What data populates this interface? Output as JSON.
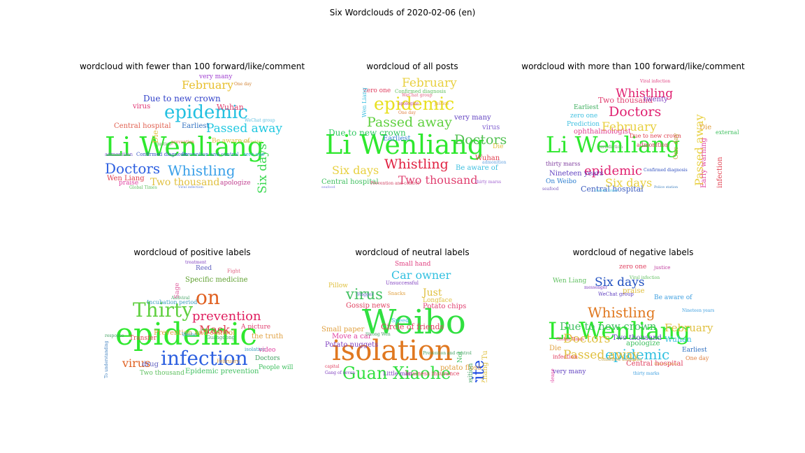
{
  "figure_title": "Six Wordclouds of 2020-02-06 (en)",
  "panels": [
    {
      "title": "wordcloud with fewer than 100 forward/like/comment",
      "words": [
        {
          "t": "Li Wenliang",
          "s": 38,
          "c": "#2ee82e"
        },
        {
          "t": "epidemic",
          "s": 26,
          "c": "#22c0e0"
        },
        {
          "t": "Doctors",
          "s": 20,
          "c": "#2d5fe0"
        },
        {
          "t": "Whistling",
          "s": 20,
          "c": "#3aa0e8"
        },
        {
          "t": "Passed away",
          "s": 17,
          "c": "#22c8e0"
        },
        {
          "t": "February",
          "s": 16,
          "c": "#e8c030"
        },
        {
          "t": "Six days",
          "s": 17,
          "c": "#3ad850",
          "r": 1
        },
        {
          "t": "Two thousand",
          "s": 14,
          "c": "#e0c040"
        },
        {
          "t": "Due to new crown",
          "s": 12,
          "c": "#3040c8"
        },
        {
          "t": "Wuhan",
          "s": 11,
          "c": "#e04070"
        },
        {
          "t": "Central hospital",
          "s": 10,
          "c": "#e06050"
        },
        {
          "t": "Earliest",
          "s": 10,
          "c": "#3070c0"
        },
        {
          "t": "Wen Liang",
          "s": 10,
          "c": "#e04050"
        },
        {
          "t": "very many",
          "s": 9,
          "c": "#a040d0"
        },
        {
          "t": "virus",
          "s": 10,
          "c": "#e03070"
        },
        {
          "t": "Be aware of",
          "s": 9,
          "c": "#e0c040"
        },
        {
          "t": "apologize",
          "s": 9,
          "c": "#c04090"
        },
        {
          "t": "praise",
          "s": 9,
          "c": "#e040a0"
        },
        {
          "t": "Confirmed diagnosis",
          "s": 7,
          "c": "#3050c0"
        },
        {
          "t": "Prevention and control",
          "s": 7,
          "c": "#3070c8"
        },
        {
          "t": "admonition",
          "s": 7,
          "c": "#8060d0"
        },
        {
          "t": "One day",
          "s": 6,
          "c": "#d08030"
        },
        {
          "t": "Die",
          "s": 11,
          "c": "#e0c040",
          "r": 1
        },
        {
          "t": "zero one",
          "s": 7,
          "c": "#40a0e0"
        },
        {
          "t": "justice",
          "s": 6,
          "c": "#40a040"
        },
        {
          "t": "prevention",
          "s": 6,
          "c": "#e07040"
        },
        {
          "t": "Global Times",
          "s": 6,
          "c": "#60c060"
        },
        {
          "t": "WeChat group",
          "s": 6,
          "c": "#60c0e0"
        },
        {
          "t": "Viral infection",
          "s": 5,
          "c": "#6080e0"
        },
        {
          "t": "Gallbladder",
          "s": 5,
          "c": "#c0c040"
        }
      ]
    },
    {
      "title": "wordcloud of all posts",
      "words": [
        {
          "t": "Li Wenliang",
          "s": 38,
          "c": "#2ee82e"
        },
        {
          "t": "epidemic",
          "s": 25,
          "c": "#e8e020"
        },
        {
          "t": "Passed away",
          "s": 19,
          "c": "#60d040"
        },
        {
          "t": "February",
          "s": 17,
          "c": "#e8d040"
        },
        {
          "t": "Doctors",
          "s": 19,
          "c": "#50c050"
        },
        {
          "t": "Whistling",
          "s": 19,
          "c": "#e02040"
        },
        {
          "t": "Six days",
          "s": 16,
          "c": "#e8d040"
        },
        {
          "t": "Two thousand",
          "s": 16,
          "c": "#e04070"
        },
        {
          "t": "Due to new crown",
          "s": 12,
          "c": "#30c860"
        },
        {
          "t": "very many",
          "s": 10,
          "c": "#6040c0"
        },
        {
          "t": "Central hospital",
          "s": 10,
          "c": "#40c060"
        },
        {
          "t": "Earliest",
          "s": 10,
          "c": "#3080d0"
        },
        {
          "t": "Be aware of",
          "s": 10,
          "c": "#40c0e0"
        },
        {
          "t": "Wuhan",
          "s": 10,
          "c": "#e04050"
        },
        {
          "t": "virus",
          "s": 10,
          "c": "#8060d0"
        },
        {
          "t": "zero one",
          "s": 9,
          "c": "#e04060"
        },
        {
          "t": "Confirmed diagnosis",
          "s": 7,
          "c": "#60c060"
        },
        {
          "t": "Die",
          "s": 9,
          "c": "#e0c040"
        },
        {
          "t": "Prevention and control",
          "s": 6,
          "c": "#d04060"
        },
        {
          "t": "apologize",
          "s": 6,
          "c": "#c04090"
        },
        {
          "t": "thirty marss",
          "s": 6,
          "c": "#a060d0"
        },
        {
          "t": "justice",
          "s": 6,
          "c": "#e0a040"
        },
        {
          "t": "seafood",
          "s": 5,
          "c": "#8080e0"
        },
        {
          "t": "WeChat group",
          "s": 6,
          "c": "#e06080"
        },
        {
          "t": "admonition",
          "s": 6,
          "c": "#60a0e0"
        },
        {
          "t": "One day",
          "s": 6,
          "c": "#e08040"
        },
        {
          "t": "Wen Liang",
          "s": 8,
          "c": "#40c0e0",
          "r": 1
        }
      ]
    },
    {
      "title": "wordcloud with more than 100 forward/like/comment",
      "words": [
        {
          "t": "Li Wenliang",
          "s": 32,
          "c": "#2ee82e"
        },
        {
          "t": "epidemic",
          "s": 18,
          "c": "#e02070"
        },
        {
          "t": "Doctors",
          "s": 19,
          "c": "#e02070"
        },
        {
          "t": "Whistling",
          "s": 17,
          "c": "#e02070"
        },
        {
          "t": "February",
          "s": 17,
          "c": "#e8d040"
        },
        {
          "t": "Six days",
          "s": 16,
          "c": "#e8d040"
        },
        {
          "t": "Passed away",
          "s": 16,
          "c": "#e8d040",
          "r": 1
        },
        {
          "t": "Two thousand",
          "s": 11,
          "c": "#e04070"
        },
        {
          "t": "Central hospital",
          "s": 11,
          "c": "#4060c0"
        },
        {
          "t": "Nineteen years",
          "s": 10,
          "c": "#6040c0"
        },
        {
          "t": "ophthalmologist",
          "s": 10,
          "c": "#e04090"
        },
        {
          "t": "Due to new crown",
          "s": 8,
          "c": "#e04050"
        },
        {
          "t": "Earliest",
          "s": 9,
          "c": "#40b060"
        },
        {
          "t": "zero one",
          "s": 9,
          "c": "#40c0e0"
        },
        {
          "t": "twenty",
          "s": 10,
          "c": "#8040c0"
        },
        {
          "t": "Prediction",
          "s": 9,
          "c": "#40c0e0"
        },
        {
          "t": "thirty marss",
          "s": 8,
          "c": "#8040a0"
        },
        {
          "t": "On Weibo",
          "s": 9,
          "c": "#3080d0"
        },
        {
          "t": "Die",
          "s": 10,
          "c": "#e0a040"
        },
        {
          "t": "admonition",
          "s": 8,
          "c": "#d04060"
        },
        {
          "t": "Early warning",
          "s": 10,
          "c": "#e040a0",
          "r": 1
        },
        {
          "t": "infection",
          "s": 10,
          "c": "#e04050",
          "r": 1
        },
        {
          "t": "One day",
          "s": 9,
          "c": "#c0a040",
          "r": 1
        },
        {
          "t": "Confirmed diagnosis",
          "s": 6,
          "c": "#3050c0"
        },
        {
          "t": "Jurisdiction",
          "s": 6,
          "c": "#60a060"
        },
        {
          "t": "Viral infection",
          "s": 6,
          "c": "#e04080"
        },
        {
          "t": "seafood",
          "s": 6,
          "c": "#8060c0"
        },
        {
          "t": "Global Times",
          "s": 5,
          "c": "#40c0e0"
        },
        {
          "t": "Police station",
          "s": 5,
          "c": "#4080c0"
        },
        {
          "t": "external",
          "s": 8,
          "c": "#40c060"
        }
      ]
    },
    {
      "title": "wordcloud of positive labels",
      "words": [
        {
          "t": "epidemic",
          "s": 44,
          "c": "#2ee82e"
        },
        {
          "t": "infection",
          "s": 28,
          "c": "#2d60e0"
        },
        {
          "t": "Thirty",
          "s": 28,
          "c": "#60d040"
        },
        {
          "t": "on",
          "s": 28,
          "c": "#e06020"
        },
        {
          "t": "prevention",
          "s": 18,
          "c": "#e02060"
        },
        {
          "t": "Mask",
          "s": 16,
          "c": "#e04050"
        },
        {
          "t": "virus",
          "s": 16,
          "c": "#e06020"
        },
        {
          "t": "Specific medicine",
          "s": 10,
          "c": "#60a030"
        },
        {
          "t": "Prevention and control",
          "s": 10,
          "c": "#e0a040"
        },
        {
          "t": "Epidemic prevention",
          "s": 10,
          "c": "#40c060"
        },
        {
          "t": "Incubation period",
          "s": 8,
          "c": "#40a0c0"
        },
        {
          "t": "Two thousand",
          "s": 9,
          "c": "#60c060"
        },
        {
          "t": "the truth",
          "s": 10,
          "c": "#e0a040"
        },
        {
          "t": "Doctors",
          "s": 9,
          "c": "#40a060"
        },
        {
          "t": "People will",
          "s": 9,
          "c": "#40c060"
        },
        {
          "t": "Transfer",
          "s": 9,
          "c": "#e04050"
        },
        {
          "t": "Reed",
          "s": 9,
          "c": "#6060c0"
        },
        {
          "t": "drug",
          "s": 10,
          "c": "#6060c0"
        },
        {
          "t": "Guangdong",
          "s": 7,
          "c": "#40a060"
        },
        {
          "t": "Fight",
          "s": 7,
          "c": "#e06080"
        },
        {
          "t": "isolation",
          "s": 7,
          "c": "#40a0c0"
        },
        {
          "t": "treatment",
          "s": 6,
          "c": "#8040c0"
        },
        {
          "t": "February",
          "s": 7,
          "c": "#e0a040"
        },
        {
          "t": "Weibo",
          "s": 7,
          "c": "#40a0e0"
        },
        {
          "t": "Antiviral",
          "s": 6,
          "c": "#40a060"
        },
        {
          "t": "A picture",
          "s": 9,
          "c": "#e04070"
        },
        {
          "t": "video",
          "s": 9,
          "c": "#e040a0"
        },
        {
          "t": "Sage",
          "s": 9,
          "c": "#e060a0",
          "r": 1
        },
        {
          "t": "response",
          "s": 6,
          "c": "#40a060"
        },
        {
          "t": "To understanding",
          "s": 6,
          "c": "#4080c0",
          "r": 1
        }
      ]
    },
    {
      "title": "wordcloud of neutral labels",
      "words": [
        {
          "t": "Weibo",
          "s": 48,
          "c": "#30e040"
        },
        {
          "t": "isolation",
          "s": 40,
          "c": "#e07820"
        },
        {
          "t": "Guan Xiaohe",
          "s": 24,
          "c": "#30e040"
        },
        {
          "t": "virus",
          "s": 21,
          "c": "#40c060"
        },
        {
          "t": "Car owner",
          "s": 16,
          "c": "#30c0e0"
        },
        {
          "t": "Write",
          "s": 22,
          "c": "#1040e0",
          "r": 1
        },
        {
          "t": "Just",
          "s": 14,
          "c": "#e0c040"
        },
        {
          "t": "Potato chips",
          "s": 10,
          "c": "#e04070"
        },
        {
          "t": "Circle of friends",
          "s": 11,
          "c": "#e04060"
        },
        {
          "t": "Potato nuggets",
          "s": 10,
          "c": "#8040c0"
        },
        {
          "t": "Move a car",
          "s": 10,
          "c": "#e040a0"
        },
        {
          "t": "Small paper",
          "s": 10,
          "c": "#e0a040"
        },
        {
          "t": "Small hand",
          "s": 9,
          "c": "#e04080"
        },
        {
          "t": "Gossip news",
          "s": 10,
          "c": "#e04060"
        },
        {
          "t": "potato floss",
          "s": 10,
          "c": "#e0a040"
        },
        {
          "t": "business insurance",
          "s": 8,
          "c": "#e04060"
        },
        {
          "t": "Little man",
          "s": 8,
          "c": "#8040c0"
        },
        {
          "t": "Pillow",
          "s": 9,
          "c": "#e0c040"
        },
        {
          "t": "Not",
          "s": 9,
          "c": "#40c060",
          "r": 1
        },
        {
          "t": "Longface",
          "s": 9,
          "c": "#e0c040"
        },
        {
          "t": "position",
          "s": 9,
          "c": "#40a060",
          "r": 1
        },
        {
          "t": "Zhang Tu",
          "s": 10,
          "c": "#e0c040",
          "r": 1
        },
        {
          "t": "Speed",
          "s": 8,
          "c": "#40c0e0"
        },
        {
          "t": "Snacks",
          "s": 7,
          "c": "#e0a040"
        },
        {
          "t": "Unsuccessful",
          "s": 7,
          "c": "#8040c0"
        },
        {
          "t": "Prevention and control",
          "s": 6,
          "c": "#40a060"
        },
        {
          "t": "Gang of seven",
          "s": 6,
          "c": "#8040c0"
        },
        {
          "t": "capital",
          "s": 6,
          "c": "#e04060"
        },
        {
          "t": "Strong Wen",
          "s": 6,
          "c": "#40a060"
        },
        {
          "t": "Stagger",
          "s": 6,
          "c": "#6060c0"
        }
      ]
    },
    {
      "title": "wordcloud of negative labels",
      "words": [
        {
          "t": "Li Wenliang",
          "s": 34,
          "c": "#2ee82e"
        },
        {
          "t": "epidemic",
          "s": 20,
          "c": "#30c0e0"
        },
        {
          "t": "Whistling",
          "s": 20,
          "c": "#e07820"
        },
        {
          "t": "Doctors",
          "s": 17,
          "c": "#e0c040"
        },
        {
          "t": "Passed away",
          "s": 17,
          "c": "#e0c040"
        },
        {
          "t": "Six days",
          "s": 17,
          "c": "#2050c0"
        },
        {
          "t": "Due to new crown",
          "s": 15,
          "c": "#40c060"
        },
        {
          "t": "February",
          "s": 15,
          "c": "#e0c040"
        },
        {
          "t": "Two thousand",
          "s": 10,
          "c": "#6040c0"
        },
        {
          "t": "Wuhan",
          "s": 11,
          "c": "#40c0e0"
        },
        {
          "t": "Central hospital",
          "s": 10,
          "c": "#e04060"
        },
        {
          "t": "Wen Liang",
          "s": 9,
          "c": "#60c060"
        },
        {
          "t": "very many",
          "s": 9,
          "c": "#6040c0"
        },
        {
          "t": "apologize",
          "s": 10,
          "c": "#40c060"
        },
        {
          "t": "praise",
          "s": 10,
          "c": "#e0c040"
        },
        {
          "t": "Be aware of",
          "s": 9,
          "c": "#40a0e0"
        },
        {
          "t": "Earliest",
          "s": 9,
          "c": "#3070c0"
        },
        {
          "t": "zero one",
          "s": 9,
          "c": "#e04060"
        },
        {
          "t": "Die",
          "s": 10,
          "c": "#e0a040"
        },
        {
          "t": "infection",
          "s": 8,
          "c": "#e04060"
        },
        {
          "t": "One day",
          "s": 8,
          "c": "#e08040"
        },
        {
          "t": "justice",
          "s": 7,
          "c": "#c040a0"
        },
        {
          "t": "WeChat group",
          "s": 7,
          "c": "#6040c0"
        },
        {
          "t": "Nineteen years",
          "s": 6,
          "c": "#40a0e0"
        },
        {
          "t": "messenger",
          "s": 6,
          "c": "#8040c0"
        },
        {
          "t": "Global Times",
          "s": 6,
          "c": "#e04060"
        },
        {
          "t": "Confirmed diagnosis",
          "s": 6,
          "c": "#c0a040"
        },
        {
          "t": "thirty marks",
          "s": 6,
          "c": "#40a0e0"
        },
        {
          "t": "Viral infection",
          "s": 6,
          "c": "#60c060"
        },
        {
          "t": "Police station",
          "s": 5,
          "c": "#e0a040"
        },
        {
          "t": "release",
          "s": 7,
          "c": "#e040a0",
          "r": 1
        }
      ]
    }
  ]
}
